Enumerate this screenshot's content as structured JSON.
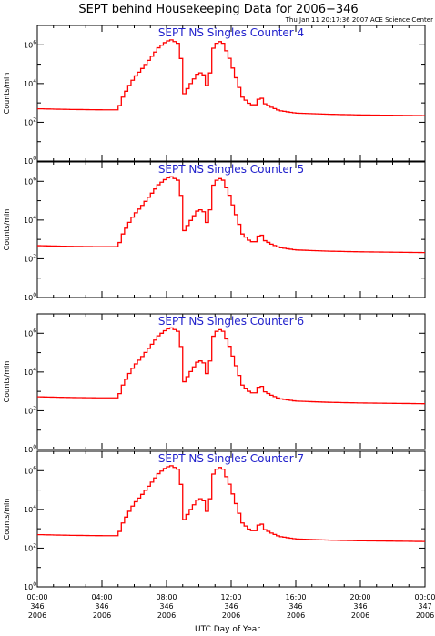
{
  "chart_data": {
    "type": "line",
    "title": "SEPT behind Housekeeping Data for 2006−346",
    "stamp": "Thu Jan 11 20:17:36 2007 ACE Science Center",
    "xlabel": "UTC Day of Year",
    "ylabel": "Counts/min",
    "yscale": "log",
    "ylim": [
      1,
      10000000
    ],
    "xlim": [
      0,
      24
    ],
    "yticks": [
      {
        "exp": 0,
        "base": "10",
        "pow": "0"
      },
      {
        "exp": 2,
        "base": "10",
        "pow": "2"
      },
      {
        "exp": 4,
        "base": "10",
        "pow": "4"
      },
      {
        "exp": 6,
        "base": "10",
        "pow": "6"
      }
    ],
    "xticks": [
      {
        "hour": 0,
        "time": "00:00",
        "doy": "346",
        "year": "2006"
      },
      {
        "hour": 4,
        "time": "04:00",
        "doy": "346",
        "year": "2006"
      },
      {
        "hour": 8,
        "time": "08:00",
        "doy": "346",
        "year": "2006"
      },
      {
        "hour": 12,
        "time": "12:00",
        "doy": "346",
        "year": "2006"
      },
      {
        "hour": 16,
        "time": "16:00",
        "doy": "346",
        "year": "2006"
      },
      {
        "hour": 20,
        "time": "20:00",
        "doy": "346",
        "year": "2006"
      },
      {
        "hour": 24,
        "time": "00:00",
        "doy": "347",
        "year": "2006"
      }
    ],
    "line_color": "#ff0000",
    "title_color": "#2222cc",
    "profile": {
      "x": [
        0,
        1,
        2,
        3,
        4,
        5,
        5.3,
        5.7,
        6,
        6.5,
        7,
        7.5,
        8,
        8.3,
        8.7,
        9,
        9.1,
        9.5,
        10,
        10.4,
        10.6,
        10.8,
        11.2,
        11.5,
        11.9,
        12.3,
        12.7,
        13.2,
        13.6,
        13.8,
        14,
        14.5,
        15,
        16,
        18,
        20,
        22,
        24
      ],
      "counts": [
        500,
        480,
        460,
        450,
        440,
        440,
        2000,
        8000,
        20000,
        60000,
        200000,
        700000,
        1500000,
        1800000,
        1200000,
        80000,
        3000,
        10000,
        40000,
        25000,
        2500,
        500000,
        1600000,
        1200000,
        200000,
        20000,
        2000,
        800,
        800,
        3000,
        1000,
        600,
        400,
        300,
        260,
        240,
        230,
        220
      ]
    },
    "panels": [
      {
        "label": "SEPT NS Singles Counter 4",
        "scale": 1.0
      },
      {
        "label": "SEPT NS Singles Counter 5",
        "scale": 0.95
      },
      {
        "label": "SEPT NS Singles Counter 6",
        "scale": 1.05
      },
      {
        "label": "SEPT NS Singles Counter 7",
        "scale": 1.0
      }
    ]
  }
}
